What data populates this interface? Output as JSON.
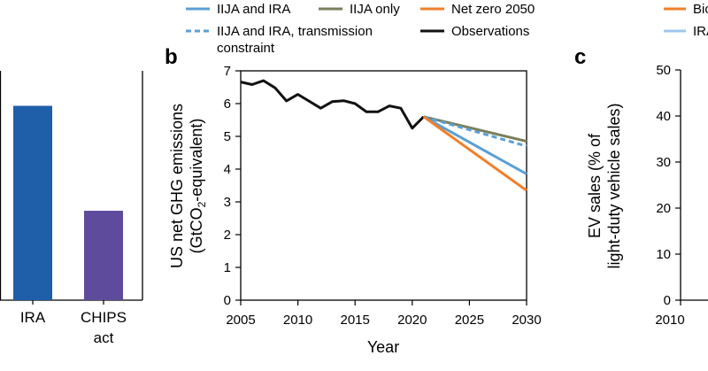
{
  "legend": {
    "items": [
      {
        "label": "IIJA and IRA",
        "color": "#5a9fd4",
        "style": "solid"
      },
      {
        "label": "IIJA only",
        "color": "#7a7f5a",
        "style": "solid"
      },
      {
        "label": "Net zero 2050",
        "color": "#f07f2a",
        "style": "solid"
      },
      {
        "label": "IIJA and IRA, transmission",
        "label2": "constraint",
        "color": "#5a9fd4",
        "style": "dashed"
      },
      {
        "label": "Observations",
        "color": "#111111",
        "style": "solid"
      }
    ]
  },
  "right_legend": [
    {
      "label": "Bio",
      "color": "#f07f2a"
    },
    {
      "label": "IRA",
      "color": "#9cc8ec"
    }
  ],
  "chart_data": [
    {
      "type": "bar",
      "panel": "a",
      "categories": [
        "IRA",
        "CHIPS act"
      ],
      "category_lines": [
        [
          "IRA"
        ],
        [
          "CHIPS",
          "act"
        ]
      ],
      "values": [
        100,
        46
      ],
      "colors": [
        "#1f5ea8",
        "#5e4b9c"
      ],
      "note": "Left panel cropped; y-axis not visible. Values are relative estimates.",
      "ylim": [
        0,
        118
      ]
    },
    {
      "type": "line",
      "panel": "b",
      "panel_label": "b",
      "xlabel": "Year",
      "ylabel_line1": "US net GHG emissions",
      "ylabel_line2_pre": "(GtCO",
      "ylabel_line2_sub": "2",
      "ylabel_line2_post": "-equivalent)",
      "xlim": [
        2005,
        2030
      ],
      "ylim": [
        0,
        7
      ],
      "xticks": [
        "2005",
        "2010",
        "2015",
        "2020",
        "2025",
        "2030"
      ],
      "yticks": [
        "0",
        "1",
        "2",
        "3",
        "4",
        "5",
        "6",
        "7"
      ],
      "series": [
        {
          "name": "Observations",
          "color": "#111111",
          "dash": "",
          "x": [
            2005,
            2006,
            2007,
            2008,
            2009,
            2010,
            2011,
            2012,
            2013,
            2014,
            2015,
            2016,
            2017,
            2018,
            2019,
            2020,
            2021
          ],
          "y": [
            6.66,
            6.58,
            6.7,
            6.48,
            6.08,
            6.28,
            6.07,
            5.86,
            6.06,
            6.09,
            6.0,
            5.75,
            5.75,
            5.93,
            5.86,
            5.25,
            5.6
          ]
        },
        {
          "name": "IIJA only",
          "color": "#7a7f5a",
          "dash": "",
          "x": [
            2021,
            2030
          ],
          "y": [
            5.6,
            4.85
          ]
        },
        {
          "name": "IIJA and IRA, transmission constraint",
          "color": "#5a9fd4",
          "dash": "6,4",
          "x": [
            2021,
            2030
          ],
          "y": [
            5.6,
            4.7
          ]
        },
        {
          "name": "IIJA and IRA",
          "color": "#5a9fd4",
          "dash": "",
          "x": [
            2021,
            2030
          ],
          "y": [
            5.6,
            3.85
          ]
        },
        {
          "name": "Net zero 2050",
          "color": "#f07f2a",
          "dash": "",
          "x": [
            2021,
            2030
          ],
          "y": [
            5.6,
            3.35
          ]
        }
      ]
    },
    {
      "type": "line",
      "panel": "c",
      "panel_label": "c",
      "ylabel_line1": "EV sales (% of",
      "ylabel_line2": "light-duty vehicle sales)",
      "ylim": [
        0,
        50
      ],
      "yticks": [
        "0",
        "10",
        "20",
        "30",
        "40",
        "50"
      ],
      "xticks": [
        "2010"
      ],
      "series": []
    }
  ]
}
